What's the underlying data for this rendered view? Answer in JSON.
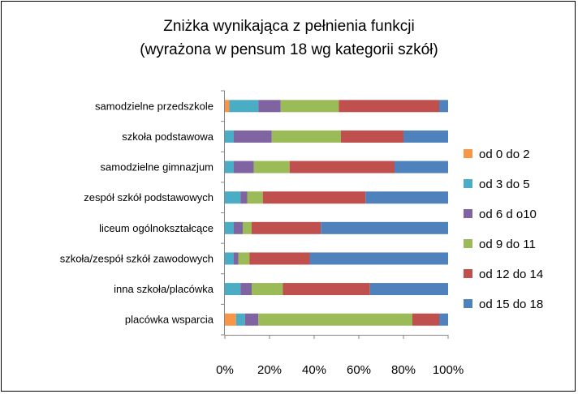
{
  "chart_data": {
    "type": "bar",
    "orientation": "horizontal",
    "stacked": "percent",
    "title": "Zniżka wynikająca z pełnienia funkcji (wyrażona w pensum 18 wg kategorii szkół)",
    "title_lines": [
      "Zniżka wynikająca z pełnienia funkcji",
      "(wyrażona w pensum 18 wg kategorii szkół)"
    ],
    "xlabel": "",
    "ylabel": "",
    "xlim": [
      0,
      100
    ],
    "x_ticks": [
      "0%",
      "20%",
      "40%",
      "60%",
      "80%",
      "100%"
    ],
    "grid": false,
    "legend_position": "right",
    "categories": [
      "samodzielne przedszkole",
      "szkoła podstawowa",
      "samodzielne gimnazjum",
      "zespół szkół podstawowych",
      "liceum ogólnokształcące",
      "szkoła/zespół szkół zawodowych",
      "inna szkoła/placówka",
      "placówka wsparcia"
    ],
    "series": [
      {
        "name": "od 0 do 2",
        "color": "#F79646",
        "values": [
          2,
          0,
          0,
          0,
          0,
          0,
          0,
          5
        ]
      },
      {
        "name": "od 3 do 5",
        "color": "#4BACC6",
        "values": [
          13,
          4,
          4,
          7,
          4,
          4,
          7,
          4
        ]
      },
      {
        "name": "od 6 d o10",
        "color": "#8064A2",
        "values": [
          10,
          17,
          9,
          3,
          4,
          2,
          5,
          6
        ]
      },
      {
        "name": "od 9 do 11",
        "color": "#9BBB59",
        "values": [
          26,
          31,
          16,
          7,
          4,
          5,
          14,
          69
        ]
      },
      {
        "name": "od 12 do 14",
        "color": "#C0504D",
        "values": [
          45,
          28,
          47,
          46,
          31,
          27,
          39,
          12
        ]
      },
      {
        "name": "od 15 do 18",
        "color": "#4F81BD",
        "values": [
          4,
          20,
          24,
          37,
          57,
          62,
          35,
          4
        ]
      }
    ]
  }
}
